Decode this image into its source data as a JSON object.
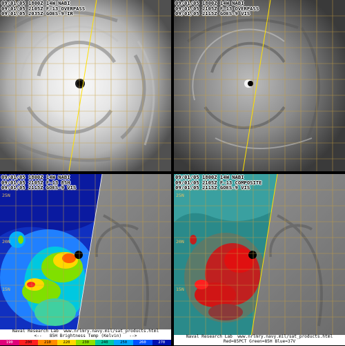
{
  "panels": [
    {
      "lines": [
        "09/01/05 1800Z 14W NABI",
        "09/01/05 2105Z F-13 OVERPASS",
        "09/01/05 2035Z GOES-9 IR"
      ]
    },
    {
      "lines": [
        "09/01/05 1800Z 14W NABI",
        "09/01/05 2105Z F-13 OVERPASS",
        "09/01/05 2115Z GOES-9 VIS"
      ]
    },
    {
      "lines": [
        "09/01/05 1800Z 14W NABI",
        "09/01/05 2105Z F-13 85H",
        "09/01/05 2115Z GOES-9 VIS"
      ],
      "lat_labels": [
        "25N",
        "20N",
        "15N"
      ]
    },
    {
      "lines": [
        "09/01/05 1800Z 14W NABI",
        "09/01/05 2105Z F-13 COMPOSITE",
        "09/01/05 2115Z GOES-9 VIS"
      ],
      "lat_labels": [
        "25N",
        "20N",
        "15N"
      ]
    }
  ],
  "footer_left": {
    "line1": "Naval Research Lab  www.nrlmry.navy.mil/sat_products.html",
    "line2": "<--   85H Brightness Temp (Kelvin)   -->"
  },
  "footer_right": {
    "line1": "Naval Research Lab  www.nrlmry.navy.mil/sat_products.html",
    "line2": "Red=85PCT Green=85H Blue=37V"
  },
  "colorbar": {
    "ticks": [
      "190",
      "200",
      "210",
      "220",
      "230",
      "240",
      "250",
      "260",
      "270"
    ],
    "colors": [
      "#e0007a",
      "#ff2020",
      "#ff8c00",
      "#ffd800",
      "#8ee000",
      "#00c8a0",
      "#00a8ff",
      "#0050ff",
      "#0010b0"
    ]
  }
}
